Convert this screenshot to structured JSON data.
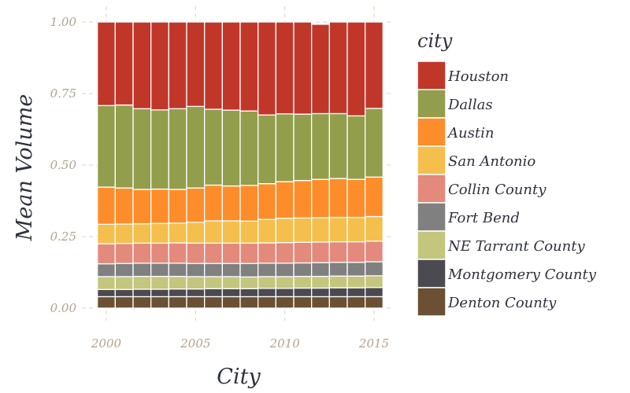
{
  "chart_data": {
    "type": "bar",
    "stacked": true,
    "xlabel": "City",
    "ylabel": "Mean Volume",
    "legend_title": "city",
    "legend_position": "right",
    "ylim": [
      0,
      1
    ],
    "grid": true,
    "x": [
      2000,
      2001,
      2002,
      2003,
      2004,
      2005,
      2006,
      2007,
      2008,
      2009,
      2010,
      2011,
      2012,
      2013,
      2014,
      2015
    ],
    "x_ticks": [
      "2000",
      "2005",
      "2010",
      "2015"
    ],
    "y_ticks": [
      "0.00",
      "0.25",
      "0.50",
      "0.75",
      "1.00"
    ],
    "series": [
      {
        "name": "Denton County",
        "color": "#6b5034",
        "values": [
          0.04,
          0.04,
          0.04,
          0.04,
          0.04,
          0.04,
          0.04,
          0.04,
          0.04,
          0.04,
          0.04,
          0.04,
          0.04,
          0.04,
          0.04,
          0.04
        ]
      },
      {
        "name": "Montgomery County",
        "color": "#4b4a50",
        "values": [
          0.025,
          0.025,
          0.026,
          0.026,
          0.027,
          0.027,
          0.028,
          0.028,
          0.028,
          0.029,
          0.029,
          0.03,
          0.03,
          0.031,
          0.031,
          0.032
        ]
      },
      {
        "name": "NE Tarrant County",
        "color": "#c3c67c",
        "values": [
          0.045,
          0.045,
          0.045,
          0.045,
          0.044,
          0.043,
          0.042,
          0.042,
          0.041,
          0.041,
          0.041,
          0.041,
          0.041,
          0.041,
          0.041,
          0.041
        ]
      },
      {
        "name": "Fort Bend",
        "color": "#808080",
        "values": [
          0.045,
          0.046,
          0.046,
          0.046,
          0.046,
          0.046,
          0.046,
          0.046,
          0.047,
          0.047,
          0.047,
          0.047,
          0.048,
          0.048,
          0.048,
          0.049
        ]
      },
      {
        "name": "Collin County",
        "color": "#e38a7c",
        "values": [
          0.07,
          0.07,
          0.07,
          0.07,
          0.071,
          0.071,
          0.071,
          0.071,
          0.071,
          0.071,
          0.072,
          0.072,
          0.072,
          0.072,
          0.072,
          0.072
        ]
      },
      {
        "name": "San Antonio",
        "color": "#f4bf4d",
        "values": [
          0.068,
          0.068,
          0.068,
          0.069,
          0.069,
          0.073,
          0.078,
          0.078,
          0.077,
          0.082,
          0.085,
          0.085,
          0.085,
          0.085,
          0.085,
          0.086
        ]
      },
      {
        "name": "Austin",
        "color": "#fd8d2a",
        "values": [
          0.13,
          0.126,
          0.12,
          0.12,
          0.118,
          0.12,
          0.125,
          0.122,
          0.125,
          0.125,
          0.128,
          0.131,
          0.134,
          0.136,
          0.133,
          0.138
        ]
      },
      {
        "name": "Dallas",
        "color": "#929e4c",
        "values": [
          0.285,
          0.29,
          0.282,
          0.277,
          0.282,
          0.285,
          0.265,
          0.265,
          0.26,
          0.24,
          0.237,
          0.232,
          0.23,
          0.227,
          0.222,
          0.24
        ]
      },
      {
        "name": "Houston",
        "color": "#c0372a",
        "values": [
          0.292,
          0.29,
          0.303,
          0.307,
          0.303,
          0.295,
          0.305,
          0.308,
          0.311,
          0.325,
          0.321,
          0.322,
          0.312,
          0.32,
          0.328,
          0.302
        ]
      }
    ]
  }
}
